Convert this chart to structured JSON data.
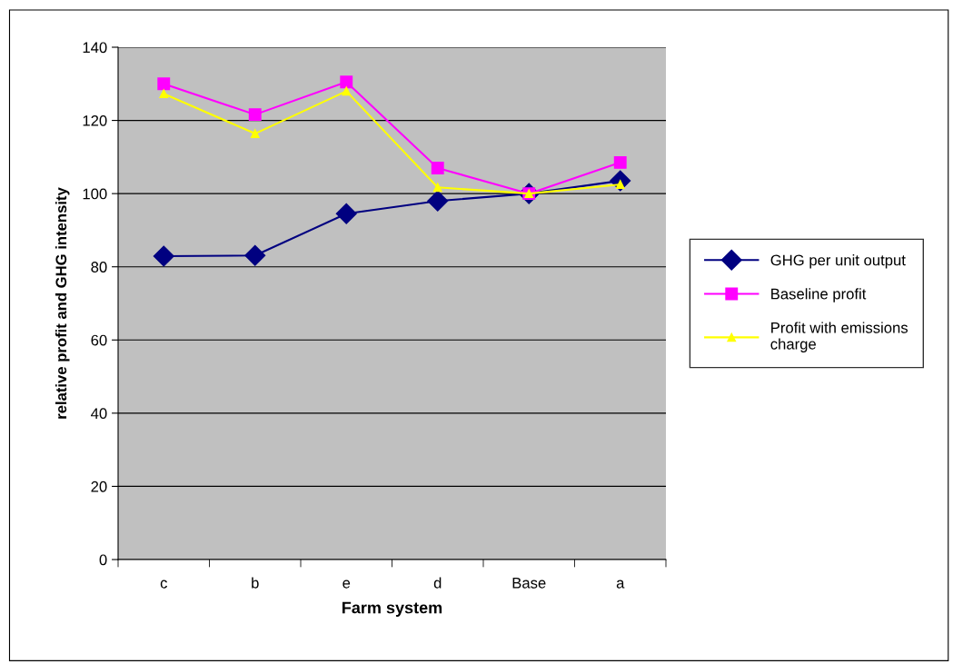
{
  "chart_data": {
    "type": "line",
    "xlabel": "Farm system",
    "ylabel": "relative profit and GHG intensity",
    "categories": [
      "c",
      "b",
      "e",
      "d",
      "Base",
      "a"
    ],
    "series": [
      {
        "name": "GHG per unit output",
        "color": "#000080",
        "marker": "diamond",
        "values": [
          82.9,
          83.1,
          94.5,
          98,
          100,
          103.5
        ]
      },
      {
        "name": "Baseline profit",
        "color": "#ff00ff",
        "marker": "square",
        "values": [
          130,
          121.6,
          130.5,
          107,
          100,
          108.5
        ]
      },
      {
        "name": "Profit with emissions charge",
        "color": "#ffff00",
        "marker": "triangle",
        "values": [
          127.3,
          116.4,
          128,
          101.7,
          100,
          102.5
        ]
      }
    ],
    "ylim": [
      0,
      140
    ],
    "yticks": [
      0,
      20,
      40,
      60,
      80,
      100,
      120,
      140
    ],
    "grid": "y",
    "legend": "right"
  }
}
